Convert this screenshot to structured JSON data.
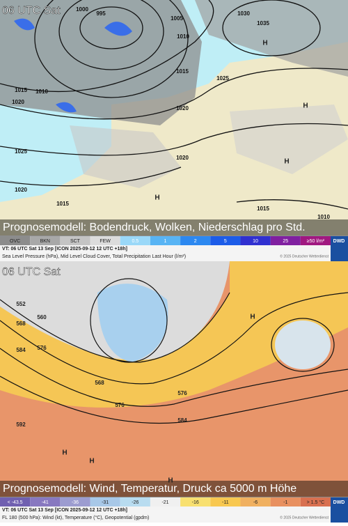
{
  "top": {
    "time": "06 UTC Sat",
    "caption": "Prognosemodell: Bodendruck, Wolken, Niederschlag pro Std.",
    "isobar_labels": [
      "1000",
      "995",
      "1005",
      "1030",
      "1035",
      "1010",
      "1015",
      "1025",
      "1015",
      "1010",
      "1020",
      "1020",
      "1025",
      "1020",
      "1020",
      "1015",
      "1015",
      "1010"
    ],
    "centers": [
      "H",
      "H",
      "H",
      "H"
    ],
    "legend": [
      {
        "label": "OVC",
        "color": "#8c8c8c"
      },
      {
        "label": "BKN",
        "color": "#a8a8a8"
      },
      {
        "label": "SCT",
        "color": "#c4c4c4"
      },
      {
        "label": "FEW",
        "color": "#dcdcdc"
      },
      {
        "label": "0.5",
        "color": "#9ad8f8"
      },
      {
        "label": "1",
        "color": "#58b4f4"
      },
      {
        "label": "2",
        "color": "#2c88f0"
      },
      {
        "label": "5",
        "color": "#1c5ce8"
      },
      {
        "label": "10",
        "color": "#3030d0"
      },
      {
        "label": "25",
        "color": "#8020a0"
      },
      {
        "label": "≥50 l/m²",
        "color": "#a01880"
      }
    ],
    "valid": "VT: 06 UTC Sat  13 Sep [ICON 2025-09-12 12 UTC +18h]",
    "description": "Sea Level Pressure (hPa), Mid Level Cloud Cover, Total Precipitation Last Hour (l/m²)",
    "copyright": "© 2025 Deutscher Wetterdienst",
    "logo": "DWD"
  },
  "bottom": {
    "time": "06 UTC Sat",
    "caption": "Prognosemodell: Wind, Temperatur, Druck ca 5000 m Höhe",
    "contour_labels": [
      "552",
      "560",
      "568",
      "576",
      "584",
      "592",
      "568",
      "576",
      "576",
      "584"
    ],
    "centers": [
      "H",
      "H",
      "H",
      "H"
    ],
    "legend": [
      {
        "label": "< -43.5",
        "color": "#7060b0"
      },
      {
        "label": "-41",
        "color": "#8878c0"
      },
      {
        "label": "-36",
        "color": "#9c9cd0"
      },
      {
        "label": "-31",
        "color": "#a8c8e8"
      },
      {
        "label": "-26",
        "color": "#b8dcf0"
      },
      {
        "label": "-21",
        "color": "#f0f0f0"
      },
      {
        "label": "-16",
        "color": "#f8e070"
      },
      {
        "label": "-11",
        "color": "#f8c850"
      },
      {
        "label": "-6",
        "color": "#f0b060"
      },
      {
        "label": "-1",
        "color": "#e89060"
      },
      {
        "label": "> 1.5 °C",
        "color": "#d87050"
      }
    ],
    "valid": "VT: 06 UTC Sat  13 Sep [ICON 2025-09-12 12 UTC +18h]",
    "description": "FL 180 (500 hPa): Wind (kt), Temperature (°C), Geopotential (gpdm)",
    "copyright": "© 2025 Deutscher Wetterdienst",
    "logo": "DWD"
  }
}
